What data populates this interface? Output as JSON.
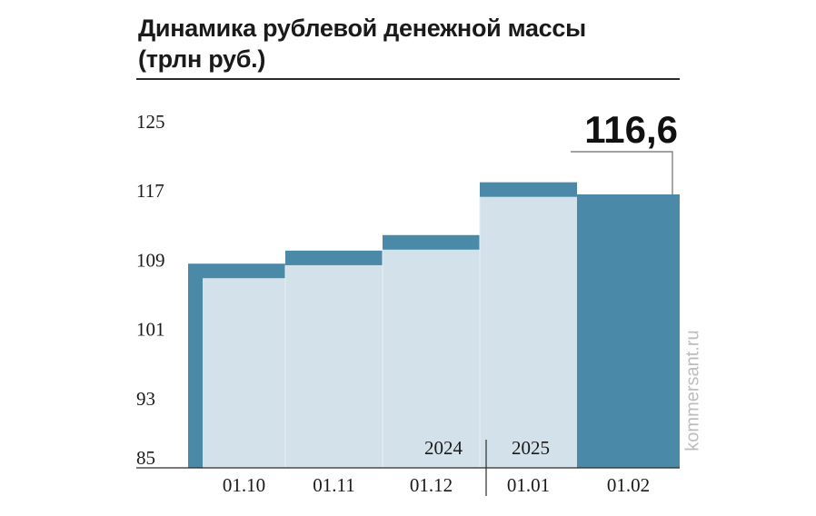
{
  "title": "Динамика рублевой денежной массы",
  "subtitle": "(трлн руб.)",
  "watermark": "kommersant.ru",
  "colors": {
    "teal": "#4a8aa8",
    "light": "#d3e2ea",
    "text": "#1a1a1a",
    "callout_line": "#6a6a6a"
  },
  "chart_data": {
    "type": "bar",
    "categories": [
      "01.10",
      "01.11",
      "01.12",
      "01.01",
      "01.02"
    ],
    "values": [
      108.6,
      110.1,
      111.9,
      118.0,
      116.6
    ],
    "ylim": [
      85,
      125
    ],
    "yticks": [
      125,
      117,
      109,
      101,
      93,
      85
    ],
    "year_labels": [
      "2024",
      "2025"
    ],
    "callout": "116,6",
    "grid": false,
    "legend": "none"
  }
}
